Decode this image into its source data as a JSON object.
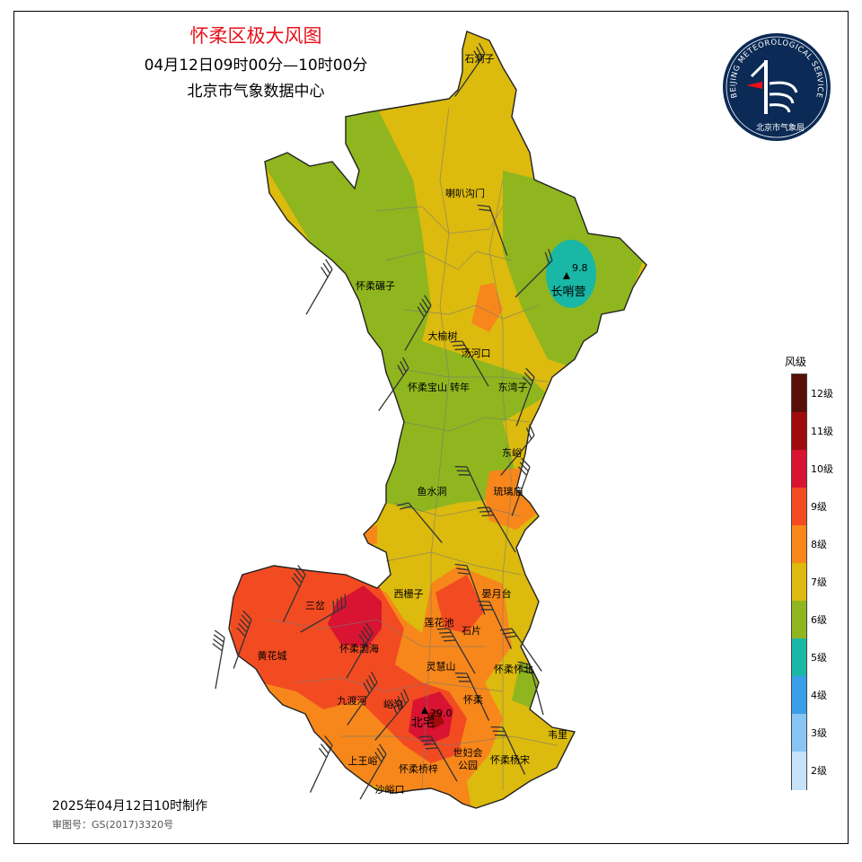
{
  "title": "怀柔区极大风图",
  "time_range": "04月12日09时00分—10时00分",
  "source": "北京市气象数据中心",
  "made_time": "2025年04月12日10时制作",
  "approval_no": "审图号：GS(2017)3320号",
  "logo": {
    "ring_text": "BEIJING METEOROLOGICAL SERVICE",
    "caption": "北京市气象局",
    "colors": [
      "#0b2a55",
      "#ffffff"
    ]
  },
  "legend": {
    "title": "风级",
    "levels": [
      {
        "label": "12级",
        "color": "#5a0f08"
      },
      {
        "label": "11级",
        "color": "#a00c0c"
      },
      {
        "label": "10级",
        "color": "#d81432"
      },
      {
        "label": "9级",
        "color": "#f24b22"
      },
      {
        "label": "8级",
        "color": "#f7871a"
      },
      {
        "label": "7级",
        "color": "#dcba0e"
      },
      {
        "label": "6级",
        "color": "#8fb61e"
      },
      {
        "label": "5级",
        "color": "#19b7a6"
      },
      {
        "label": "4级",
        "color": "#3a9ee8"
      },
      {
        "label": "3级",
        "color": "#88c4f4"
      },
      {
        "label": "2级",
        "color": "#c6e3fa"
      }
    ]
  },
  "places": [
    "石洞子",
    "喇叭沟门",
    "怀柔碾子",
    "长哨营",
    "大榆树",
    "汤河口",
    "怀柔宝山",
    "转年",
    "东湾子",
    "东峪",
    "鱼水洞",
    "琉璃庙",
    "西栅子",
    "三岔",
    "晏月台",
    "莲花池",
    "石片",
    "黄花城",
    "怀柔渤海",
    "灵慧山",
    "怀柔怀北",
    "九渡河",
    "峪沟",
    "怀柔",
    "北宅",
    "韦里",
    "世妇会",
    "公园",
    "怀柔杨宋",
    "上王峪",
    "怀柔桥梓",
    "沙峪口"
  ],
  "values": {
    "changshaoying": "9.8",
    "beizhai": "29.0"
  }
}
